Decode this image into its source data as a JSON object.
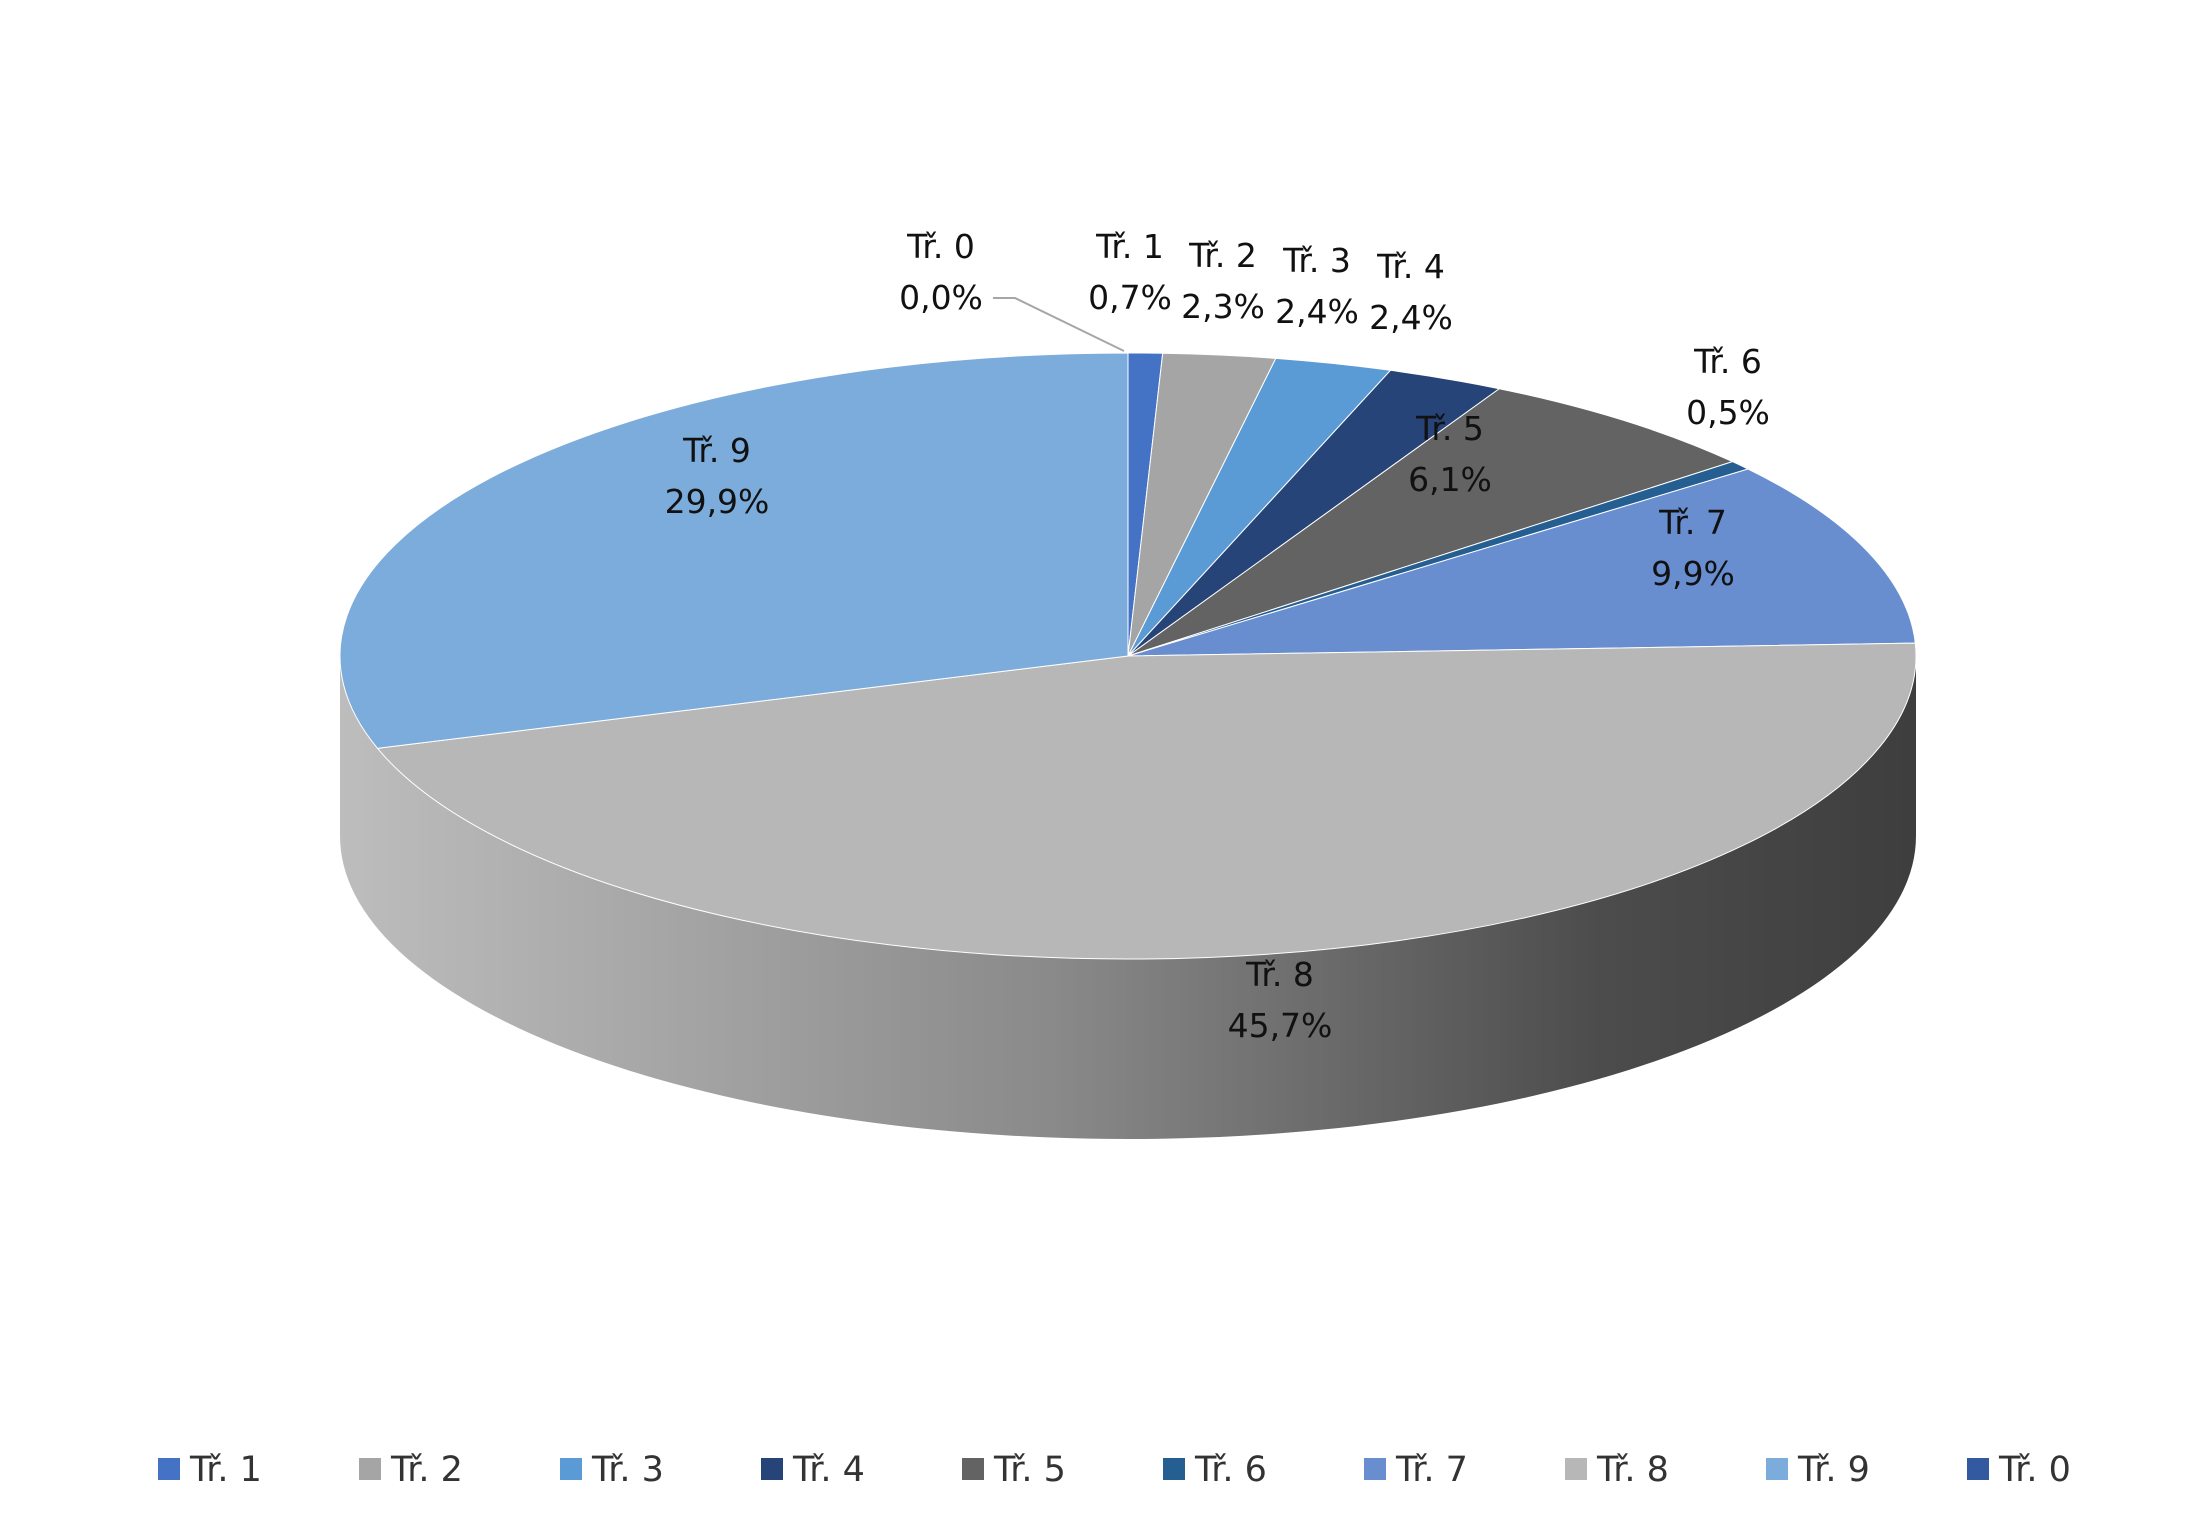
{
  "chart_data": {
    "type": "pie",
    "title": "",
    "categories": [
      "Tř. 1",
      "Tř. 2",
      "Tř. 3",
      "Tř. 4",
      "Tř. 5",
      "Tř. 6",
      "Tř. 7",
      "Tř. 8",
      "Tř. 9",
      "Tř. 0"
    ],
    "values": [
      0.7,
      2.3,
      2.4,
      2.4,
      6.1,
      0.5,
      9.9,
      45.7,
      29.9,
      0.0
    ],
    "value_labels": [
      "0,7%",
      "2,3%",
      "2,4%",
      "2,4%",
      "6,1%",
      "0,5%",
      "9,9%",
      "45,7%",
      "29,9%",
      "0,0%"
    ],
    "unit": "%",
    "colors": [
      "#4472c4",
      "#a5a5a5",
      "#5b9bd5",
      "#264478",
      "#636363",
      "#255e91",
      "#698ed0",
      "#b7b7b7",
      "#7cacdb",
      "#335aa1"
    ],
    "style": "3d",
    "data_labels": "category name and percentage",
    "legend_position": "bottom"
  }
}
